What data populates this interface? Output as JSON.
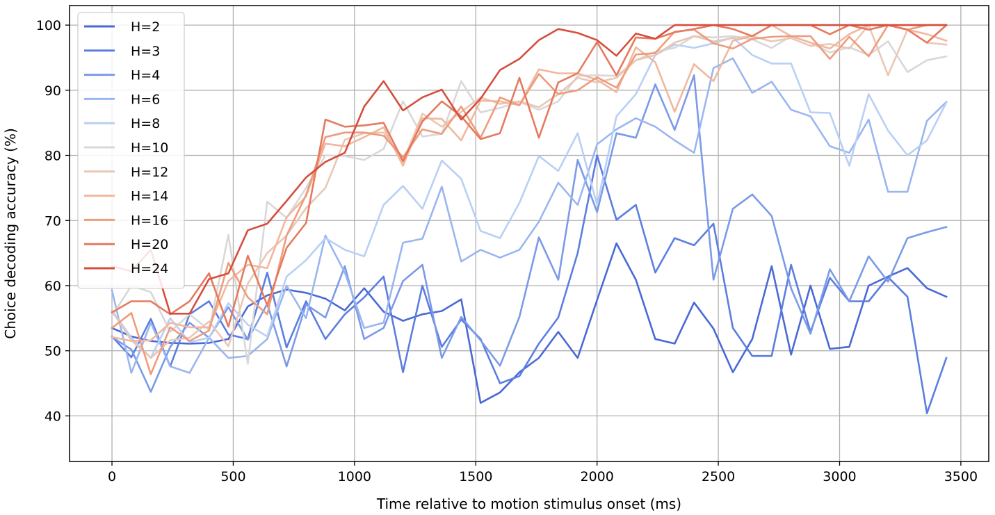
{
  "chart_data": {
    "type": "line",
    "title": "",
    "xlabel": "Time relative to motion stimulus onset (ms)",
    "ylabel": "Choice decoding accuracy (%)",
    "xlim": [
      -175,
      3615
    ],
    "ylim": [
      33,
      103
    ],
    "xticks": [
      0,
      500,
      1000,
      1500,
      2000,
      2500,
      3000,
      3500
    ],
    "yticks": [
      40,
      50,
      60,
      70,
      80,
      90,
      100
    ],
    "grid": true,
    "legend_position": "top-left",
    "x": [
      0,
      80,
      160,
      240,
      320,
      400,
      480,
      560,
      640,
      720,
      800,
      880,
      960,
      1040,
      1120,
      1200,
      1280,
      1360,
      1440,
      1520,
      1600,
      1680,
      1760,
      1840,
      1920,
      2000,
      2080,
      2160,
      2240,
      2320,
      2400,
      2480,
      2560,
      2640,
      2720,
      2800,
      2880,
      2960,
      3040,
      3120,
      3200,
      3280,
      3360,
      3440
    ],
    "series": [
      {
        "name": "H=2",
        "color": "#4a69d6",
        "values": [
          53.5,
          52.2,
          51.5,
          51.2,
          51.1,
          51.2,
          51.8,
          56.8,
          58.5,
          59.4,
          58.9,
          58.0,
          56.2,
          59.6,
          56.0,
          54.6,
          55.6,
          56.1,
          57.9,
          42.0,
          43.6,
          46.7,
          48.9,
          52.9,
          48.9,
          57.8,
          66.5,
          60.9,
          51.8,
          51.1,
          57.4,
          53.4,
          46.7,
          51.8,
          63.0,
          49.4,
          60.0,
          50.3,
          50.6,
          60.0,
          61.4,
          62.7,
          59.6,
          58.3
        ]
      },
      {
        "name": "H=3",
        "color": "#5b7ee0",
        "values": [
          52.2,
          49.0,
          54.9,
          47.6,
          55.6,
          57.6,
          52.5,
          51.8,
          62.0,
          50.5,
          57.6,
          51.8,
          55.6,
          58.2,
          61.4,
          46.7,
          60.0,
          50.6,
          54.8,
          51.8,
          45.0,
          46.1,
          51.1,
          55.1,
          65.0,
          80.0,
          70.1,
          72.4,
          62.0,
          67.3,
          66.2,
          69.5,
          53.5,
          49.2,
          49.2,
          63.2,
          52.9,
          61.2,
          57.6,
          57.6,
          61.3,
          58.3,
          40.4,
          48.9
        ]
      },
      {
        "name": "H=4",
        "color": "#7b9ae8",
        "values": [
          52.1,
          50.2,
          43.7,
          50.6,
          54.3,
          52.0,
          56.7,
          51.7,
          57.2,
          47.6,
          57.1,
          55.1,
          63.0,
          51.8,
          53.5,
          60.7,
          63.2,
          48.9,
          55.2,
          51.6,
          47.7,
          55.2,
          67.4,
          60.9,
          79.3,
          71.3,
          83.4,
          82.7,
          90.9,
          83.9,
          92.3,
          60.9,
          71.8,
          74.0,
          70.7,
          59.6,
          52.6,
          62.5,
          57.6,
          64.5,
          60.6,
          67.3,
          68.2,
          69.0
        ]
      },
      {
        "name": "H=6",
        "color": "#9ab6f0",
        "values": [
          59.3,
          46.6,
          54.3,
          47.6,
          46.6,
          52.0,
          48.9,
          49.2,
          51.8,
          60.0,
          55.0,
          67.7,
          62.0,
          53.5,
          54.3,
          66.6,
          67.2,
          75.2,
          63.7,
          65.5,
          64.3,
          65.5,
          69.8,
          75.8,
          72.4,
          81.7,
          84.0,
          85.7,
          84.4,
          82.3,
          80.4,
          93.4,
          94.9,
          89.6,
          91.3,
          87.0,
          86.0,
          81.4,
          80.4,
          85.5,
          74.4,
          74.4,
          85.3,
          88.2
        ]
      },
      {
        "name": "H=8",
        "color": "#b9cff5",
        "values": [
          56.2,
          52.0,
          48.9,
          55.0,
          51.3,
          52.0,
          57.3,
          54.0,
          52.2,
          61.4,
          63.9,
          67.3,
          65.5,
          64.5,
          72.4,
          75.3,
          71.8,
          79.2,
          76.4,
          68.4,
          67.3,
          72.7,
          79.9,
          77.6,
          83.4,
          72.4,
          86.0,
          89.4,
          95.4,
          97.0,
          96.5,
          97.2,
          98.1,
          95.4,
          94.1,
          94.1,
          86.6,
          86.5,
          78.4,
          89.4,
          83.8,
          80.0,
          82.3,
          88.1
        ]
      },
      {
        "name": "H=10",
        "color": "#d8d8d8",
        "values": [
          55.3,
          60.0,
          59.0,
          52.9,
          55.6,
          53.2,
          67.8,
          48.0,
          72.9,
          70.4,
          75.0,
          80.0,
          79.9,
          79.3,
          81.0,
          88.3,
          82.9,
          83.3,
          91.4,
          86.6,
          87.3,
          88.2,
          87.0,
          88.3,
          92.2,
          92.3,
          92.2,
          94.6,
          95.9,
          96.5,
          98.3,
          98.1,
          98.3,
          97.8,
          96.5,
          98.3,
          97.3,
          95.8,
          96.6,
          95.4,
          97.5,
          92.8,
          94.6,
          95.2
        ]
      },
      {
        "name": "H=12",
        "color": "#eac7b4",
        "values": [
          56.1,
          51.6,
          48.9,
          51.6,
          52.0,
          54.5,
          50.7,
          60.3,
          65.0,
          67.7,
          71.9,
          75.0,
          82.4,
          83.4,
          83.5,
          79.0,
          86.4,
          84.4,
          86.7,
          88.9,
          87.9,
          88.3,
          87.4,
          89.4,
          91.9,
          91.2,
          91.9,
          94.6,
          95.4,
          97.3,
          98.3,
          97.5,
          98.0,
          98.3,
          97.5,
          98.0,
          96.8,
          97.1,
          96.4,
          100.0,
          92.3,
          99.3,
          97.3,
          97.0
        ]
      },
      {
        "name": "H=14",
        "color": "#f2b79e",
        "values": [
          52.1,
          51.5,
          51.6,
          54.3,
          53.6,
          53.6,
          60.7,
          63.2,
          62.7,
          70.5,
          73.7,
          81.8,
          81.4,
          82.8,
          84.3,
          78.4,
          85.7,
          85.6,
          82.3,
          88.4,
          88.3,
          87.7,
          93.2,
          92.6,
          92.6,
          91.6,
          89.7,
          96.6,
          94.3,
          86.7,
          94.0,
          91.4,
          97.6,
          98.3,
          100.0,
          98.3,
          97.3,
          96.4,
          98.6,
          100.0,
          100.0,
          99.3,
          98.6,
          97.6
        ]
      },
      {
        "name": "H=16",
        "color": "#ee9c7c",
        "values": [
          53.5,
          55.8,
          46.4,
          53.6,
          51.5,
          53.1,
          63.5,
          58.2,
          55.6,
          67.7,
          73.9,
          82.8,
          83.5,
          83.5,
          83.0,
          79.7,
          84.0,
          83.3,
          87.5,
          82.7,
          88.9,
          87.7,
          92.5,
          89.4,
          90.0,
          92.0,
          90.4,
          95.5,
          95.7,
          99.0,
          99.3,
          97.2,
          96.4,
          97.9,
          98.2,
          98.3,
          98.3,
          94.8,
          98.2,
          95.2,
          100.0,
          99.3,
          100.0,
          100.0
        ]
      },
      {
        "name": "H=20",
        "color": "#e57a5e",
        "values": [
          55.9,
          57.6,
          57.6,
          55.6,
          57.6,
          61.9,
          53.7,
          64.6,
          57.0,
          65.8,
          69.6,
          85.5,
          84.4,
          84.6,
          85.0,
          79.1,
          85.2,
          88.3,
          86.0,
          82.5,
          83.4,
          91.9,
          82.7,
          91.2,
          92.6,
          97.4,
          92.3,
          98.1,
          97.9,
          98.9,
          99.4,
          100.0,
          99.4,
          98.3,
          100.0,
          100.0,
          100.0,
          98.6,
          100.0,
          99.3,
          100.0,
          99.3,
          97.3,
          100.0
        ]
      },
      {
        "name": "H=24",
        "color": "#d64d3e",
        "values": [
          63.0,
          62.2,
          65.5,
          55.7,
          55.7,
          61.0,
          61.9,
          68.5,
          69.5,
          73.0,
          76.6,
          79.0,
          80.4,
          87.5,
          91.4,
          86.9,
          88.9,
          90.1,
          85.5,
          88.7,
          93.1,
          94.8,
          97.7,
          99.4,
          98.8,
          97.7,
          95.3,
          98.7,
          97.9,
          100.0,
          100.0,
          100.0,
          100.0,
          100.0,
          100.0,
          100.0,
          100.0,
          100.0,
          100.0,
          100.0,
          100.0,
          100.0,
          100.0,
          100.0
        ]
      }
    ]
  }
}
